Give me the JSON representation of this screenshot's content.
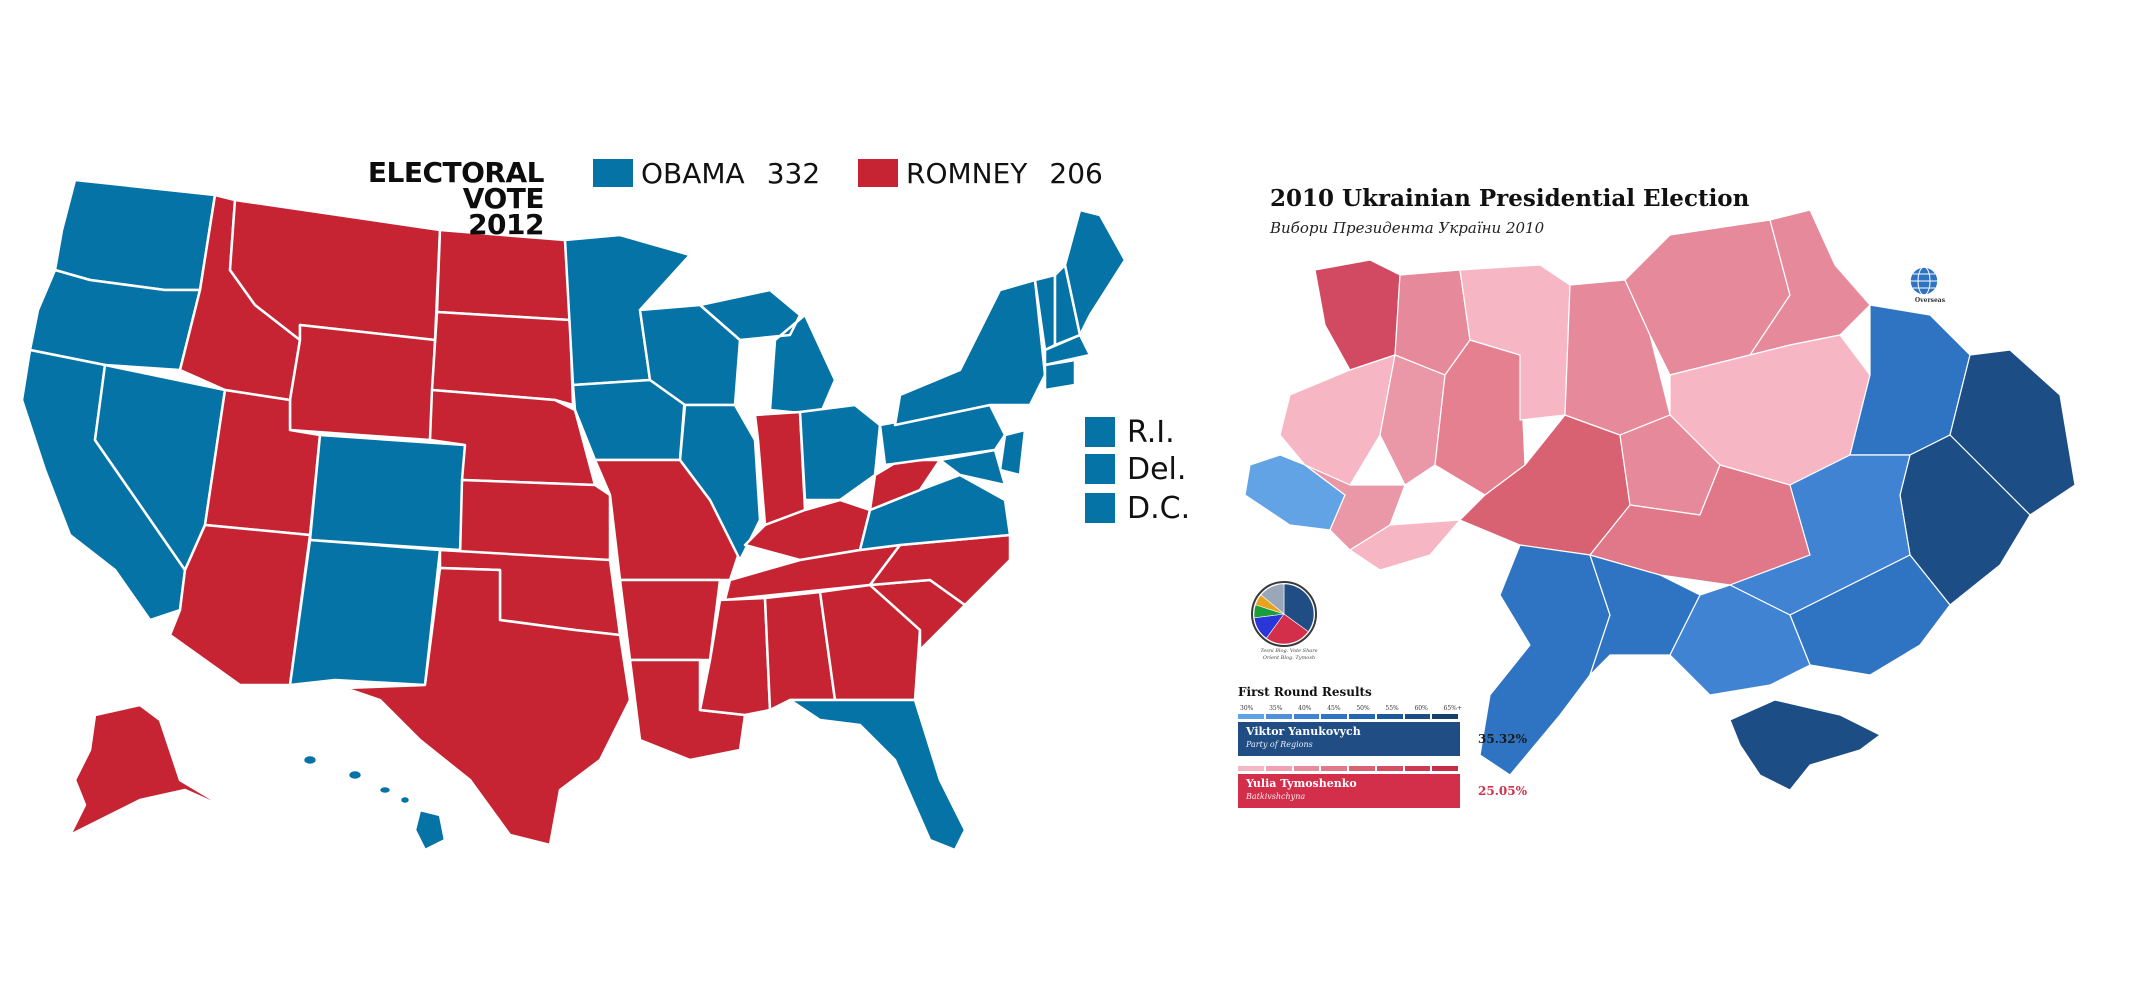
{
  "us_map": {
    "title_line1": "ELECTORAL VOTE",
    "title_line2": "2012",
    "candidates": [
      {
        "name": "OBAMA",
        "votes": "332",
        "color": "#0573a6"
      },
      {
        "name": "ROMNEY",
        "votes": "206",
        "color": "#c62433"
      }
    ],
    "small_states": [
      "R.I.",
      "Del.",
      "D.C."
    ],
    "state_colors": {
      "obama": "#0573a6",
      "romney": "#c62433",
      "border": "#ffffff"
    }
  },
  "ukraine_map": {
    "title": "2010 Ukrainian Presidential Election",
    "subtitle": "Вибори Президента України 2010",
    "overseas_label": "Overseas",
    "pie_caption_line1": "Tesni Blog. Vote Share",
    "pie_caption_line2": "Orient Blog. Tymosh",
    "results_title": "First Round Results",
    "scale_labels": [
      "30%",
      "35%",
      "40%",
      "45%",
      "50%",
      "55%",
      "60%",
      "65%+"
    ],
    "scale_colors_blue": [
      "#62a3e6",
      "#4f91dc",
      "#3f83d2",
      "#2f74c2",
      "#2467b0",
      "#1d5a9c",
      "#1b4e87",
      "#173f6c"
    ],
    "scale_colors_red": [
      "#f6b7c4",
      "#f0a1b2",
      "#e78c9c",
      "#e07889",
      "#d96272",
      "#d44f63",
      "#cd3a52",
      "#c62e47"
    ],
    "candidates": [
      {
        "name": "Viktor Yanukovych",
        "party": "Party of Regions",
        "percent": "35.32%",
        "color": "#1f4d84"
      },
      {
        "name": "Yulia Tymoshenko",
        "party": "Batkivshchyna",
        "percent": "25.05%",
        "color": "#d32f4a"
      }
    ],
    "pie_slices": [
      {
        "value": 35,
        "color": "#1f4d84"
      },
      {
        "value": 25,
        "color": "#d32f4a"
      },
      {
        "value": 13,
        "color": "#2b36d8"
      },
      {
        "value": 7,
        "color": "#1a9d3d"
      },
      {
        "value": 6,
        "color": "#e8a21c"
      },
      {
        "value": 14,
        "color": "#9aa7b8"
      }
    ]
  }
}
